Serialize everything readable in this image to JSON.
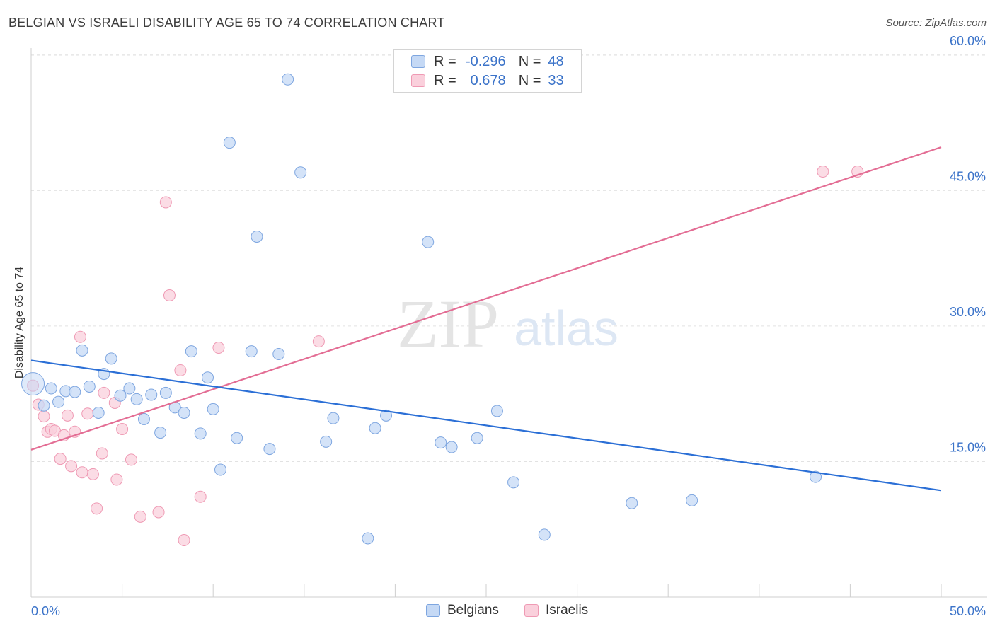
{
  "header": {
    "title": "BELGIAN VS ISRAELI DISABILITY AGE 65 TO 74 CORRELATION CHART",
    "source": "Source: ZipAtlas.com"
  },
  "watermark": {
    "zip": "ZIP",
    "atlas": "atlas"
  },
  "legend": {
    "belgians": {
      "r_label": "R =",
      "r_value": "-0.296",
      "n_label": "N =",
      "n_value": "48"
    },
    "israelis": {
      "r_label": "R =",
      "r_value": "0.678",
      "n_label": "N =",
      "n_value": "33"
    }
  },
  "bottom_legend": {
    "belgians": "Belgians",
    "israelis": "Israelis"
  },
  "colors": {
    "belgian_fill": "#c5d9f5",
    "belgian_stroke": "#7ea6e0",
    "belgian_line": "#2b6fd6",
    "israeli_fill": "#fad0dc",
    "israeli_stroke": "#ef9ab4",
    "israeli_line": "#e36d94",
    "tick_text": "#3b73c9"
  },
  "chart_data": {
    "type": "scatter",
    "title": "BELGIAN VS ISRAELI DISABILITY AGE 65 TO 74 CORRELATION CHART",
    "xlabel": "",
    "ylabel": "Disability Age 65 to 74",
    "xlim": [
      0,
      50
    ],
    "ylim": [
      0,
      61.5
    ],
    "x_tick_labels": [
      "0.0%",
      "50.0%"
    ],
    "y_ticks": [
      15,
      30,
      45,
      60
    ],
    "y_tick_labels": [
      "15.0%",
      "30.0%",
      "45.0%",
      "60.0%"
    ],
    "grid": true,
    "legend_position": "top-center",
    "series": [
      {
        "name": "Belgians",
        "r": -0.296,
        "n": 48,
        "trend": {
          "x": [
            0,
            50
          ],
          "y": [
            26.2,
            11.8
          ]
        },
        "points": [
          [
            0.1,
            23.6
          ],
          [
            0.7,
            21.2
          ],
          [
            1.1,
            23.1
          ],
          [
            1.5,
            21.6
          ],
          [
            1.9,
            22.8
          ],
          [
            2.4,
            22.7
          ],
          [
            2.8,
            27.3
          ],
          [
            3.2,
            23.3
          ],
          [
            3.7,
            20.4
          ],
          [
            4.0,
            24.7
          ],
          [
            4.4,
            26.4
          ],
          [
            4.9,
            22.3
          ],
          [
            5.4,
            23.1
          ],
          [
            5.8,
            21.9
          ],
          [
            6.2,
            19.7
          ],
          [
            6.6,
            22.4
          ],
          [
            7.1,
            18.2
          ],
          [
            7.4,
            22.6
          ],
          [
            7.9,
            21.0
          ],
          [
            8.4,
            20.4
          ],
          [
            8.8,
            27.2
          ],
          [
            9.3,
            18.1
          ],
          [
            9.7,
            24.3
          ],
          [
            10.0,
            20.8
          ],
          [
            10.4,
            14.1
          ],
          [
            10.9,
            50.3
          ],
          [
            11.3,
            17.6
          ],
          [
            12.1,
            27.2
          ],
          [
            12.4,
            39.9
          ],
          [
            13.1,
            16.4
          ],
          [
            13.6,
            26.9
          ],
          [
            14.1,
            57.3
          ],
          [
            14.8,
            47.0
          ],
          [
            16.2,
            17.2
          ],
          [
            16.6,
            19.8
          ],
          [
            18.5,
            6.5
          ],
          [
            18.9,
            18.7
          ],
          [
            19.5,
            20.1
          ],
          [
            21.8,
            39.3
          ],
          [
            22.5,
            17.1
          ],
          [
            23.1,
            16.6
          ],
          [
            24.5,
            17.6
          ],
          [
            25.6,
            20.6
          ],
          [
            26.5,
            12.7
          ],
          [
            28.2,
            6.9
          ],
          [
            33.0,
            10.4
          ],
          [
            36.3,
            10.7
          ],
          [
            43.1,
            13.3
          ]
        ]
      },
      {
        "name": "Israelis",
        "r": 0.678,
        "n": 33,
        "trend": {
          "x": [
            0,
            50
          ],
          "y": [
            16.3,
            49.8
          ]
        },
        "points": [
          [
            0.4,
            21.3
          ],
          [
            0.7,
            20.0
          ],
          [
            0.9,
            18.3
          ],
          [
            1.1,
            18.6
          ],
          [
            1.3,
            18.4
          ],
          [
            1.6,
            15.3
          ],
          [
            1.8,
            17.9
          ],
          [
            2.0,
            20.1
          ],
          [
            2.2,
            14.5
          ],
          [
            2.4,
            18.3
          ],
          [
            2.7,
            28.8
          ],
          [
            2.8,
            13.8
          ],
          [
            3.1,
            20.3
          ],
          [
            3.4,
            13.6
          ],
          [
            3.6,
            9.8
          ],
          [
            3.9,
            15.9
          ],
          [
            4.0,
            22.6
          ],
          [
            4.6,
            21.5
          ],
          [
            4.7,
            13.0
          ],
          [
            5.0,
            18.6
          ],
          [
            5.5,
            15.2
          ],
          [
            6.0,
            8.9
          ],
          [
            7.0,
            9.4
          ],
          [
            7.4,
            43.7
          ],
          [
            7.6,
            33.4
          ],
          [
            8.2,
            25.1
          ],
          [
            8.4,
            6.3
          ],
          [
            9.3,
            11.1
          ],
          [
            10.3,
            27.6
          ],
          [
            15.8,
            28.3
          ],
          [
            43.5,
            47.1
          ],
          [
            45.4,
            47.1
          ],
          [
            0.1,
            23.4
          ]
        ]
      }
    ]
  }
}
